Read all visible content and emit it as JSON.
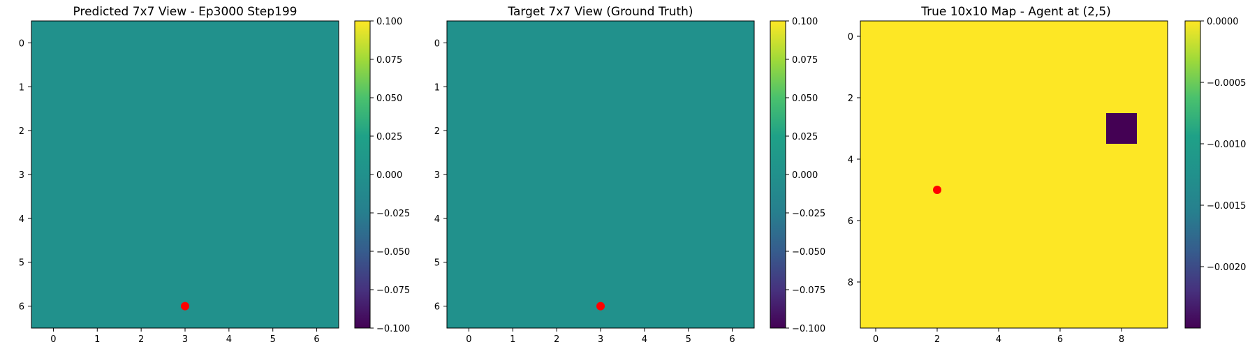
{
  "chart_data": [
    {
      "type": "heatmap",
      "title": "Predicted 7x7 View - Ep3000 Step199",
      "rows": 7,
      "cols": 7,
      "x_ticks": [
        0,
        1,
        2,
        3,
        4,
        5,
        6
      ],
      "y_ticks": [
        0,
        1,
        2,
        3,
        4,
        5,
        6
      ],
      "values_fill": 0.0,
      "cells": [],
      "colorbar": {
        "vmin": -0.1,
        "vmax": 0.1,
        "ticks": [
          "0.100",
          "0.075",
          "0.050",
          "0.025",
          "0.000",
          "−0.025",
          "−0.050",
          "−0.075",
          "−0.100"
        ],
        "tick_values": [
          0.1,
          0.075,
          0.05,
          0.025,
          0.0,
          -0.025,
          -0.05,
          -0.075,
          -0.1
        ]
      },
      "marker": {
        "x": 3,
        "y": 6,
        "color": "#ff0000"
      }
    },
    {
      "type": "heatmap",
      "title": "Target 7x7 View (Ground Truth)",
      "rows": 7,
      "cols": 7,
      "x_ticks": [
        0,
        1,
        2,
        3,
        4,
        5,
        6
      ],
      "y_ticks": [
        0,
        1,
        2,
        3,
        4,
        5,
        6
      ],
      "values_fill": 0.0,
      "cells": [],
      "colorbar": {
        "vmin": -0.1,
        "vmax": 0.1,
        "ticks": [
          "0.100",
          "0.075",
          "0.050",
          "0.025",
          "0.000",
          "−0.025",
          "−0.050",
          "−0.075",
          "−0.100"
        ],
        "tick_values": [
          0.1,
          0.075,
          0.05,
          0.025,
          0.0,
          -0.025,
          -0.05,
          -0.075,
          -0.1
        ]
      },
      "marker": {
        "x": 3,
        "y": 6,
        "color": "#ff0000"
      }
    },
    {
      "type": "heatmap",
      "title": "True 10x10 Map - Agent at (2,5)",
      "rows": 10,
      "cols": 10,
      "x_ticks": [
        0,
        2,
        4,
        6,
        8
      ],
      "y_ticks": [
        0,
        2,
        4,
        6,
        8
      ],
      "values_fill": 0.0,
      "cells": [
        {
          "x": 8,
          "y": 3,
          "value": -0.0025
        }
      ],
      "colorbar": {
        "vmin": -0.0025,
        "vmax": 0.0,
        "ticks": [
          "0.0000",
          "−0.0005",
          "−0.0010",
          "−0.0015",
          "−0.0020"
        ],
        "tick_values": [
          0.0,
          -0.0005,
          -0.001,
          -0.0015,
          -0.002
        ]
      },
      "marker": {
        "x": 2,
        "y": 5,
        "color": "#ff0000"
      }
    }
  ],
  "colors": {
    "viridis_low": "#440154",
    "viridis_mid": "#21918c",
    "viridis_high": "#fde725"
  }
}
